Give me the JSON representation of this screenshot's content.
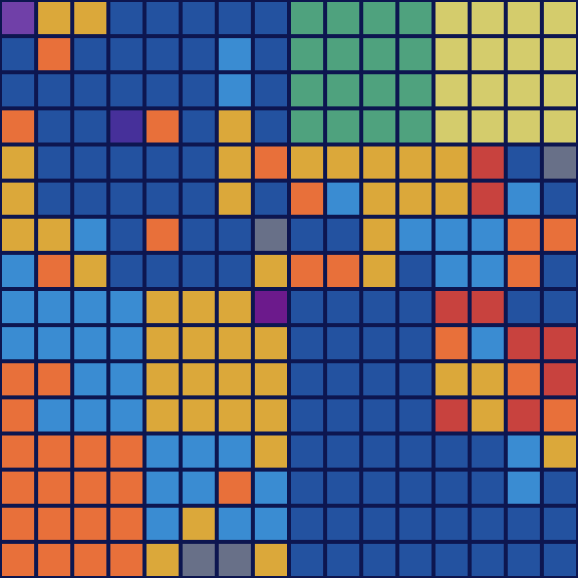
{
  "grid": {
    "rows": [
      [
        "#7040a8",
        "#dba83a",
        "#dba83a",
        "#2352a0",
        "#2352a0",
        "#2352a0",
        "#2352a0",
        "#2352a0",
        "#4fa27e",
        "#4fa27e",
        "#4fa27e",
        "#4fa27e",
        "#d4cc6c",
        "#d4cc6c",
        "#d4cc6c",
        "#d4cc6c"
      ],
      [
        "#2352a0",
        "#e8703a",
        "#2352a0",
        "#2352a0",
        "#2352a0",
        "#2352a0",
        "#3a8cd2",
        "#2352a0",
        "#4fa27e",
        "#4fa27e",
        "#4fa27e",
        "#4fa27e",
        "#d4cc6c",
        "#d4cc6c",
        "#d4cc6c",
        "#d4cc6c"
      ],
      [
        "#2352a0",
        "#2352a0",
        "#2352a0",
        "#2352a0",
        "#2352a0",
        "#2352a0",
        "#3a8cd2",
        "#2352a0",
        "#4fa27e",
        "#4fa27e",
        "#4fa27e",
        "#4fa27e",
        "#d4cc6c",
        "#d4cc6c",
        "#d4cc6c",
        "#d4cc6c"
      ],
      [
        "#e8703a",
        "#2352a0",
        "#2352a0",
        "#46309a",
        "#e8703a",
        "#2352a0",
        "#dba83a",
        "#2352a0",
        "#4fa27e",
        "#4fa27e",
        "#4fa27e",
        "#4fa27e",
        "#d4cc6c",
        "#d4cc6c",
        "#d4cc6c",
        "#d4cc6c"
      ],
      [
        "#dba83a",
        "#2352a0",
        "#2352a0",
        "#2352a0",
        "#2352a0",
        "#2352a0",
        "#dba83a",
        "#e8703a",
        "#dba83a",
        "#dba83a",
        "#dba83a",
        "#dba83a",
        "#dba83a",
        "#c8423e",
        "#2352a0",
        "#687088"
      ],
      [
        "#dba83a",
        "#2352a0",
        "#2352a0",
        "#2352a0",
        "#2352a0",
        "#2352a0",
        "#dba83a",
        "#2352a0",
        "#e8703a",
        "#3a8cd2",
        "#dba83a",
        "#dba83a",
        "#dba83a",
        "#c8423e",
        "#3a8cd2",
        "#2352a0"
      ],
      [
        "#dba83a",
        "#dba83a",
        "#3a8cd2",
        "#2352a0",
        "#e8703a",
        "#2352a0",
        "#2352a0",
        "#687088",
        "#2352a0",
        "#2352a0",
        "#dba83a",
        "#3a8cd2",
        "#3a8cd2",
        "#3a8cd2",
        "#e8703a",
        "#e8703a"
      ],
      [
        "#3a8cd2",
        "#e8703a",
        "#dba83a",
        "#2352a0",
        "#2352a0",
        "#2352a0",
        "#2352a0",
        "#dba83a",
        "#e8703a",
        "#e8703a",
        "#dba83a",
        "#2352a0",
        "#3a8cd2",
        "#3a8cd2",
        "#e8703a",
        "#2352a0"
      ],
      [
        "#3a8cd2",
        "#3a8cd2",
        "#3a8cd2",
        "#3a8cd2",
        "#dba83a",
        "#dba83a",
        "#dba83a",
        "#6c1a8c",
        "#2352a0",
        "#2352a0",
        "#2352a0",
        "#2352a0",
        "#c8423e",
        "#c8423e",
        "#2352a0",
        "#2352a0"
      ],
      [
        "#3a8cd2",
        "#3a8cd2",
        "#3a8cd2",
        "#3a8cd2",
        "#dba83a",
        "#dba83a",
        "#dba83a",
        "#dba83a",
        "#2352a0",
        "#2352a0",
        "#2352a0",
        "#2352a0",
        "#e8703a",
        "#3a8cd2",
        "#c8423e",
        "#c8423e"
      ],
      [
        "#e8703a",
        "#e8703a",
        "#3a8cd2",
        "#3a8cd2",
        "#dba83a",
        "#dba83a",
        "#dba83a",
        "#dba83a",
        "#2352a0",
        "#2352a0",
        "#2352a0",
        "#2352a0",
        "#dba83a",
        "#dba83a",
        "#e8703a",
        "#c8423e"
      ],
      [
        "#e8703a",
        "#3a8cd2",
        "#3a8cd2",
        "#3a8cd2",
        "#dba83a",
        "#dba83a",
        "#dba83a",
        "#dba83a",
        "#2352a0",
        "#2352a0",
        "#2352a0",
        "#2352a0",
        "#c8423e",
        "#dba83a",
        "#c8423e",
        "#e8703a"
      ],
      [
        "#e8703a",
        "#e8703a",
        "#e8703a",
        "#e8703a",
        "#3a8cd2",
        "#3a8cd2",
        "#3a8cd2",
        "#dba83a",
        "#2352a0",
        "#2352a0",
        "#2352a0",
        "#2352a0",
        "#2352a0",
        "#2352a0",
        "#3a8cd2",
        "#dba83a"
      ],
      [
        "#e8703a",
        "#e8703a",
        "#e8703a",
        "#e8703a",
        "#3a8cd2",
        "#3a8cd2",
        "#e8703a",
        "#3a8cd2",
        "#2352a0",
        "#2352a0",
        "#2352a0",
        "#2352a0",
        "#2352a0",
        "#2352a0",
        "#3a8cd2",
        "#2352a0"
      ],
      [
        "#e8703a",
        "#e8703a",
        "#e8703a",
        "#e8703a",
        "#3a8cd2",
        "#dba83a",
        "#3a8cd2",
        "#3a8cd2",
        "#2352a0",
        "#2352a0",
        "#2352a0",
        "#2352a0",
        "#2352a0",
        "#2352a0",
        "#2352a0",
        "#2352a0"
      ],
      [
        "#e8703a",
        "#e8703a",
        "#e8703a",
        "#e8703a",
        "#dba83a",
        "#687088",
        "#687088",
        "#dba83a",
        "#2352a0",
        "#2352a0",
        "#2352a0",
        "#2352a0",
        "#2352a0",
        "#2352a0",
        "#2352a0",
        "#2352a0"
      ]
    ]
  }
}
